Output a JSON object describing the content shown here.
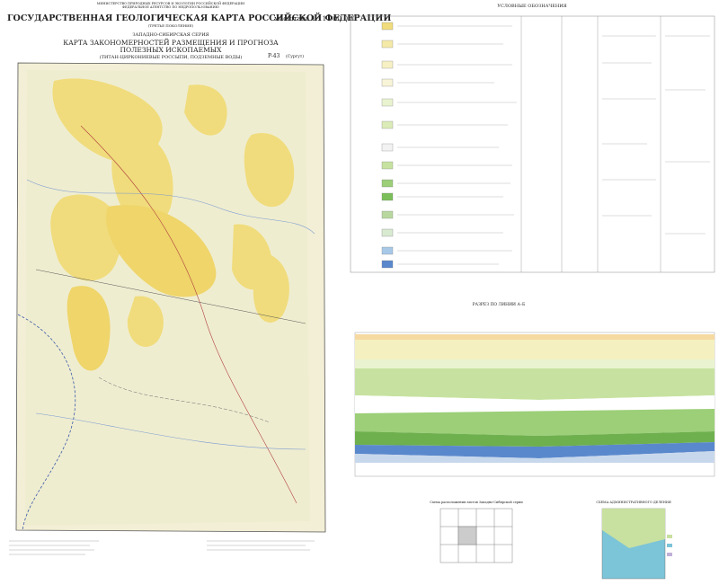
{
  "header": {
    "ministry": "МИНИСТЕРСТВО ПРИРОДНЫХ РЕСУРСОВ И ЭКОЛОГИИ РОССИЙСКОЙ ФЕДЕРАЦИИ",
    "agency": "ФЕДЕРАЛЬНОЕ АГЕНТСТВО ПО НЕДРОПОЛЬЗОВАНИЮ",
    "title": "ГОСУДАРСТВЕННАЯ ГЕОЛОГИЧЕСКАЯ КАРТА РОССИЙСКОЙ ФЕДЕРАЦИИ",
    "scale": "масштаба 1 : 1 000 000",
    "generation": "(ТРЕТЬЕ ПОКОЛЕНИЕ)",
    "series": "ЗАПАДНО-СИБИРСКАЯ СЕРИЯ",
    "map_title_1": "КАРТА ЗАКОНОМЕРНОСТЕЙ РАЗМЕЩЕНИЯ И ПРОГНОЗА",
    "map_title_2": "ПОЛЕЗНЫХ ИСКОПАЕМЫХ",
    "map_subtitle": "(ТИТАН-ЦИРКОНИЕВЫЕ РОССЫПИ, ПОДЗЕМНЫЕ ВОДЫ)",
    "sheet": "P-43",
    "sheet_name": "(Сургут)"
  },
  "legend": {
    "title": "УСЛОВНЫЕ ОБОЗНАЧЕНИЯ"
  },
  "section": {
    "title": "РАЗРЕЗ ПО ЛИНИИ А–Б"
  },
  "insets": {
    "layout": "Схема расположения листов Западно-Сибирской серии",
    "admin": "СХЕМА АДМИНИСТРАТИВНОГО ДЕЛЕНИЯ"
  }
}
